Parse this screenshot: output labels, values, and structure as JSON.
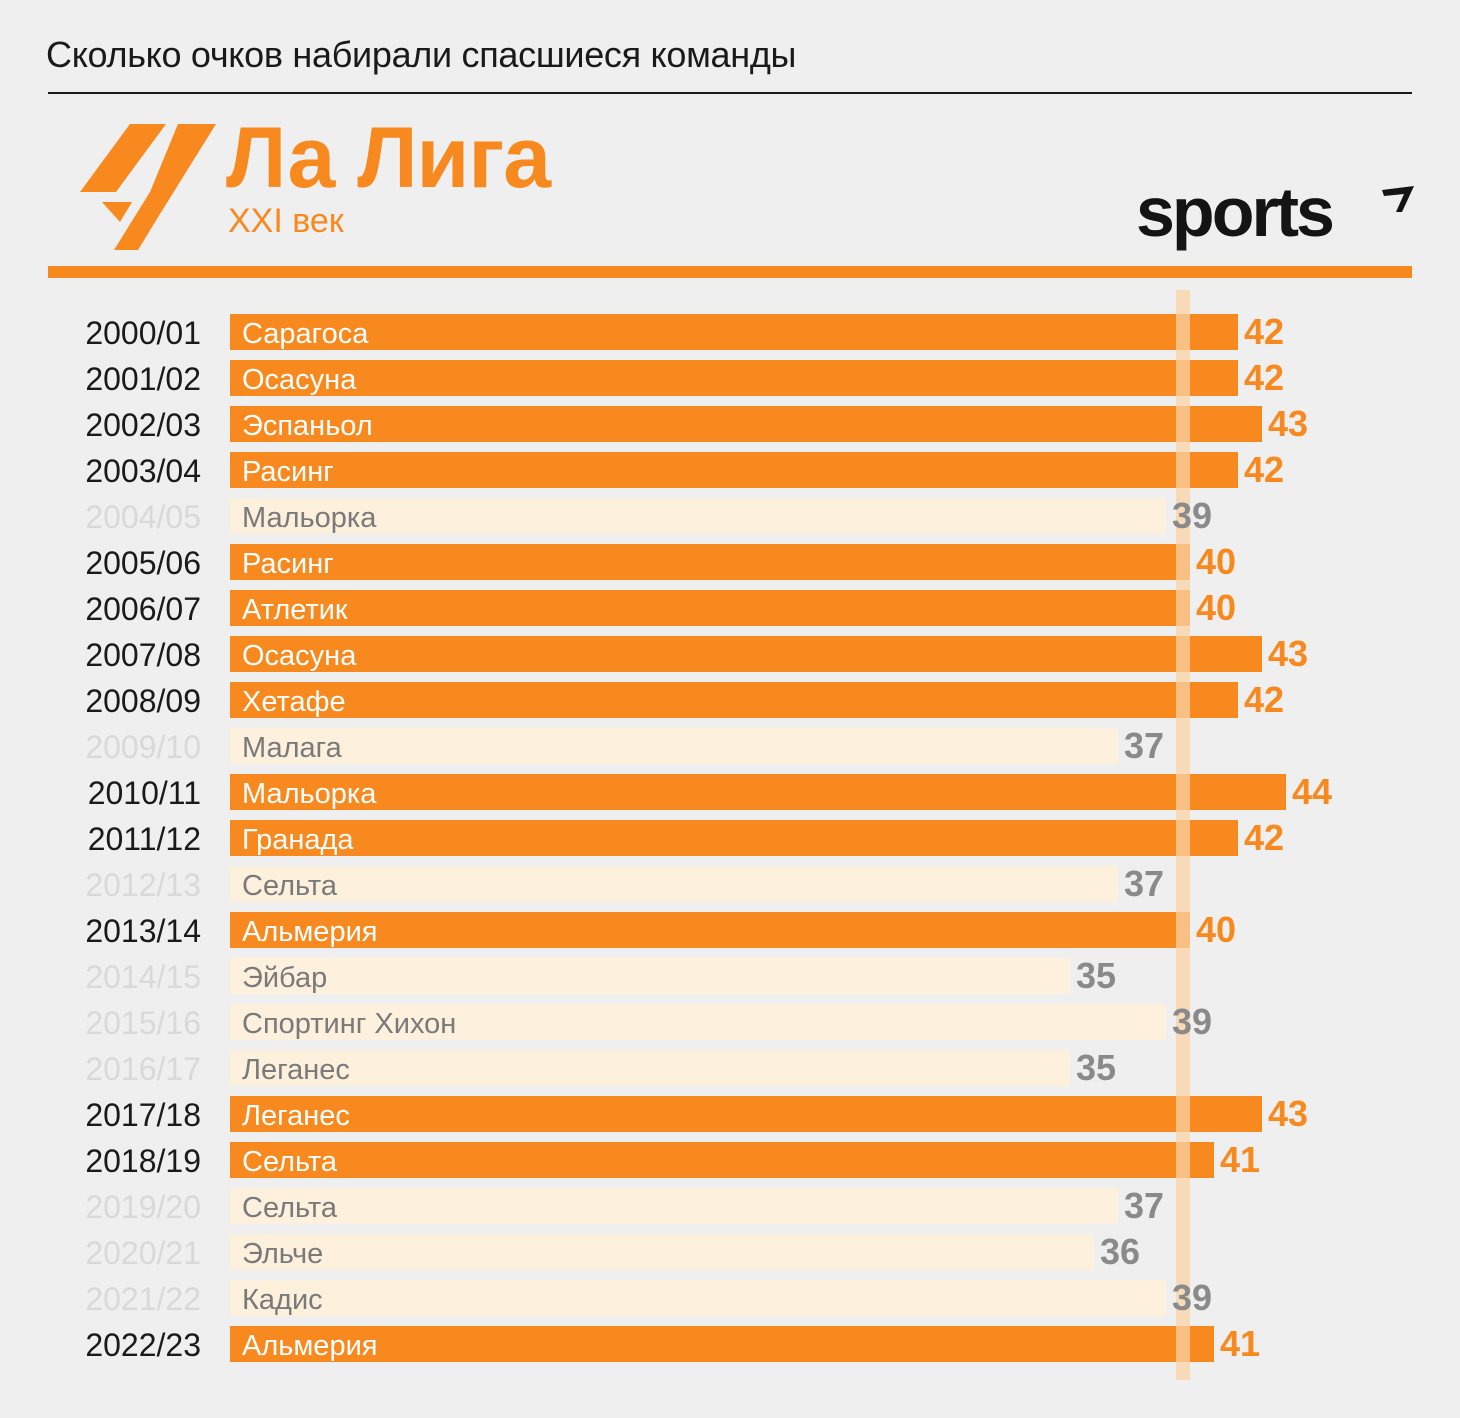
{
  "header": {
    "headline": "Сколько очков набирали спасшиеся команды",
    "title": "Ла Лига",
    "subtitle": "XXI век",
    "brand": "sports"
  },
  "colors": {
    "bar_highlight": "#f7891e",
    "bar_muted": "#fdf0dc",
    "label_muted": "#d9d9d9",
    "value_muted": "#8a8a8a",
    "reference_line": "#fbd2a6"
  },
  "chart_data": {
    "type": "bar",
    "orientation": "horizontal",
    "reference_value": 40,
    "xlim": [
      0,
      44
    ],
    "rows": [
      {
        "season": "2000/01",
        "team": "Сарагоса",
        "points": 42
      },
      {
        "season": "2001/02",
        "team": "Осасуна",
        "points": 42
      },
      {
        "season": "2002/03",
        "team": "Эспаньол",
        "points": 43
      },
      {
        "season": "2003/04",
        "team": "Расинг",
        "points": 42
      },
      {
        "season": "2004/05",
        "team": "Мальорка",
        "points": 39
      },
      {
        "season": "2005/06",
        "team": "Расинг",
        "points": 40
      },
      {
        "season": "2006/07",
        "team": "Атлетик",
        "points": 40
      },
      {
        "season": "2007/08",
        "team": "Осасуна",
        "points": 43
      },
      {
        "season": "2008/09",
        "team": "Хетафе",
        "points": 42
      },
      {
        "season": "2009/10",
        "team": "Малага",
        "points": 37
      },
      {
        "season": "2010/11",
        "team": "Мальорка",
        "points": 44
      },
      {
        "season": "2011/12",
        "team": "Гранада",
        "points": 42
      },
      {
        "season": "2012/13",
        "team": "Сельта",
        "points": 37
      },
      {
        "season": "2013/14",
        "team": "Альмерия",
        "points": 40
      },
      {
        "season": "2014/15",
        "team": "Эйбар",
        "points": 35
      },
      {
        "season": "2015/16",
        "team": "Спортинг Хихон",
        "points": 39
      },
      {
        "season": "2016/17",
        "team": "Леганес",
        "points": 35
      },
      {
        "season": "2017/18",
        "team": "Леганес",
        "points": 43
      },
      {
        "season": "2018/19",
        "team": "Сельта",
        "points": 41
      },
      {
        "season": "2019/20",
        "team": "Сельта",
        "points": 37
      },
      {
        "season": "2020/21",
        "team": "Эльче",
        "points": 36
      },
      {
        "season": "2021/22",
        "team": "Кадис",
        "points": 39
      },
      {
        "season": "2022/23",
        "team": "Альмерия",
        "points": 41
      }
    ]
  }
}
